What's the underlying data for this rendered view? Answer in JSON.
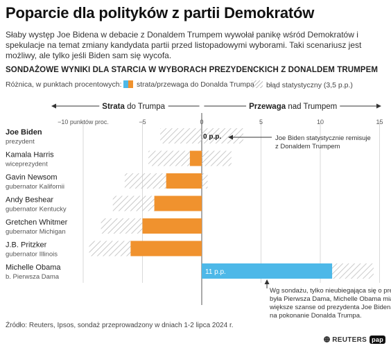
{
  "header": {
    "title": "Poparcie dla polityków z partii Demokratów",
    "lead": "Słaby występ Joe Bidena w debacie z Donaldem Trumpem wywołał panikę wśród Demokratów i spekulacje na temat zmiany kandydata partii przed listopadowymi wyborami. Taki scenariusz jest możliwy, ale tylko jeśli Biden sam się wycofa.",
    "subhead": "SONDAŻOWE WYNIKI DLA STARCIA W WYBORACH PREZYDENCKICH Z DONALDEM TRUMPEM"
  },
  "legend": {
    "label": "Różnica, w punktach procentowych:",
    "bar_item": "strata/przewaga do Donalda Trumpa",
    "error_item": "błąd statystyczny (3,5 p.p.)"
  },
  "chart_data": {
    "type": "bar",
    "orientation": "horizontal",
    "axis": {
      "xlim": [
        -11.5,
        15.5
      ],
      "ticks": [
        -10,
        -5,
        0,
        5,
        10,
        15
      ],
      "tick_labels": [
        "−10 punktów proc.",
        "−5",
        "0",
        "5",
        "10",
        "15"
      ],
      "left_header_bold": "Strata",
      "left_header_rest": "do Trumpa",
      "right_header_bold": "Przewaga",
      "right_header_rest": "nad Trumpem"
    },
    "margin_of_error": 3.5,
    "categories": [
      {
        "name": "Joe Biden",
        "role": "prezydent",
        "value": 0,
        "bold": true,
        "label": "0 p.p."
      },
      {
        "name": "Kamala Harris",
        "role": "wiceprezydent",
        "value": -1
      },
      {
        "name": "Gavin Newsom",
        "role": "gubernator Kalifornii",
        "value": -3
      },
      {
        "name": "Andy Beshear",
        "role": "gubernator Kentucky",
        "value": -4
      },
      {
        "name": "Gretchen Whitmer",
        "role": "gubernator Michigan",
        "value": -5
      },
      {
        "name": "J.B. Pritzker",
        "role": "gubernator Illinois",
        "value": -6
      },
      {
        "name": "Michelle Obama",
        "role": "b. Pierwsza Dama",
        "value": 11,
        "label": "11 p.p."
      }
    ],
    "annotations": [
      {
        "target": "Joe Biden",
        "lines": [
          "Joe Biden statystycznie remisuje",
          "z Donaldem Trumpem"
        ]
      },
      {
        "target": "Michelle Obama",
        "lines": [
          "Wg sondażu, tylko nieubiegająca się o prezydenturę",
          "była Pierwsza Dama, Michelle Obama miałaby",
          "większe szanse od prezydenta Joe Bidena,",
          "na pokonanie Donalda Trumpa."
        ]
      }
    ],
    "grid": true,
    "colors": {
      "loss": "#f0922e",
      "gain": "#4db8e8",
      "hatch": "#bdbdbd",
      "grid": "#d9d9d9",
      "zero": "#555555"
    }
  },
  "footer": {
    "source": "Źródło: Reuters, Ipsos, sondaż przeprowadzony w dniach 1-2 lipca 2024 r.",
    "logo_reuters": "REUTERS",
    "logo_pap": "pap"
  }
}
